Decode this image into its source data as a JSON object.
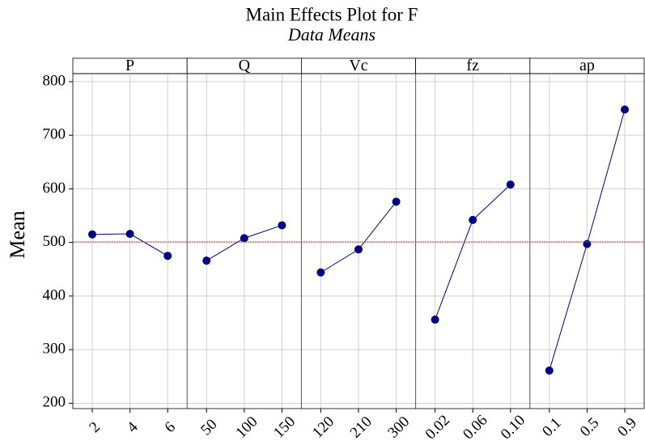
{
  "chart_data": {
    "type": "line",
    "title": "Main Effects Plot for F",
    "subtitle": "Data Means",
    "ylabel": "Mean",
    "ylim": [
      190,
      815
    ],
    "yticks": [
      200,
      300,
      400,
      500,
      600,
      700,
      800
    ],
    "grid": true,
    "reference_line": 501,
    "reference_color": "#d04040",
    "color": "#000080",
    "panels": [
      {
        "name": "P",
        "categories": [
          "2",
          "4",
          "6"
        ],
        "values": [
          515,
          516,
          475
        ]
      },
      {
        "name": "Q",
        "categories": [
          "50",
          "100",
          "150"
        ],
        "values": [
          466,
          508,
          532
        ]
      },
      {
        "name": "Vc",
        "categories": [
          "120",
          "210",
          "300"
        ],
        "values": [
          444,
          487,
          576
        ]
      },
      {
        "name": "fz",
        "categories": [
          "0.02",
          "0.06",
          "0.10"
        ],
        "values": [
          356,
          542,
          608
        ]
      },
      {
        "name": "ap",
        "categories": [
          "0.1",
          "0.5",
          "0.9"
        ],
        "values": [
          261,
          497,
          748
        ]
      }
    ]
  }
}
